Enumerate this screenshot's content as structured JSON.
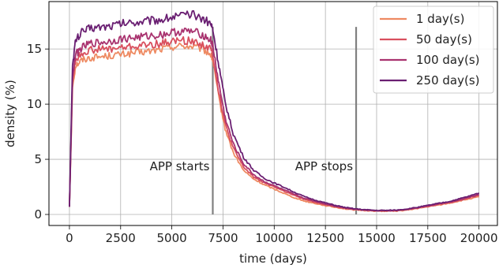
{
  "chart_data": {
    "type": "line",
    "xlabel": "time (days)",
    "ylabel": "density (%)",
    "xlim": [
      -1000,
      20900
    ],
    "ylim": [
      -1,
      19.3
    ],
    "xticks": [
      0,
      2500,
      5000,
      7500,
      10000,
      12500,
      15000,
      17500,
      20000
    ],
    "yticks": [
      0,
      5,
      10,
      15
    ],
    "grid": true,
    "legend_position": "top-right",
    "annotations": [
      {
        "text": "APP starts",
        "x": 7000
      },
      {
        "text": "APP stops",
        "x": 14000
      }
    ],
    "vlines": [
      {
        "x": 7000,
        "ymin": 0,
        "ymax": 17,
        "color": "#808080"
      },
      {
        "x": 14000,
        "ymin": 0,
        "ymax": 17,
        "color": "#808080"
      }
    ],
    "series": [
      {
        "name": "1 day(s)",
        "color": "#EE8A62",
        "x": [
          0,
          150,
          300,
          600,
          1000,
          1500,
          2000,
          2500,
          3000,
          3500,
          4000,
          4500,
          5000,
          5500,
          6000,
          6500,
          6900,
          7000,
          7300,
          7600,
          8000,
          8500,
          9000,
          9500,
          10000,
          10500,
          11000,
          11500,
          12000,
          12500,
          13000,
          13500,
          14000,
          14500,
          15000,
          15500,
          16000,
          16500,
          17000,
          17500,
          18000,
          18500,
          19000,
          19500,
          20000
        ],
        "y": [
          0.7,
          11.5,
          13.5,
          14.0,
          14.2,
          14.3,
          14.4,
          14.5,
          14.6,
          14.7,
          14.8,
          15.0,
          15.2,
          15.3,
          15.2,
          15.0,
          14.5,
          14.0,
          10.5,
          7.8,
          5.6,
          4.0,
          3.2,
          2.7,
          2.3,
          1.9,
          1.5,
          1.2,
          1.0,
          0.8,
          0.65,
          0.5,
          0.4,
          0.35,
          0.3,
          0.3,
          0.32,
          0.4,
          0.55,
          0.7,
          0.85,
          1.0,
          1.2,
          1.4,
          1.6
        ]
      },
      {
        "name": "50 day(s)",
        "color": "#D94F5E",
        "x": [
          0,
          150,
          300,
          600,
          1000,
          1500,
          2000,
          2500,
          3000,
          3500,
          4000,
          4500,
          5000,
          5500,
          6000,
          6500,
          6900,
          7000,
          7300,
          7600,
          8000,
          8500,
          9000,
          9500,
          10000,
          10500,
          11000,
          11500,
          12000,
          12500,
          13000,
          13500,
          14000,
          14500,
          15000,
          15500,
          16000,
          16500,
          17000,
          17500,
          18000,
          18500,
          19000,
          19500,
          20000
        ],
        "y": [
          0.7,
          12.0,
          14.0,
          14.6,
          14.9,
          15.0,
          15.0,
          15.1,
          15.2,
          15.3,
          15.4,
          15.5,
          15.7,
          15.8,
          15.7,
          15.4,
          15.0,
          14.5,
          11.0,
          8.2,
          6.0,
          4.3,
          3.4,
          2.9,
          2.5,
          2.1,
          1.7,
          1.35,
          1.1,
          0.9,
          0.7,
          0.55,
          0.45,
          0.38,
          0.33,
          0.33,
          0.35,
          0.45,
          0.6,
          0.75,
          0.9,
          1.05,
          1.25,
          1.5,
          1.75
        ]
      },
      {
        "name": "100 day(s)",
        "color": "#A9336F",
        "x": [
          0,
          150,
          300,
          600,
          1000,
          1500,
          2000,
          2500,
          3000,
          3500,
          4000,
          4500,
          5000,
          5500,
          6000,
          6500,
          6900,
          7000,
          7300,
          7600,
          8000,
          8500,
          9000,
          9500,
          10000,
          10500,
          11000,
          11500,
          12000,
          12500,
          13000,
          13500,
          14000,
          14500,
          15000,
          15500,
          16000,
          16500,
          17000,
          17500,
          18000,
          18500,
          19000,
          19500,
          20000
        ],
        "y": [
          0.7,
          12.5,
          14.5,
          15.1,
          15.5,
          15.6,
          15.7,
          15.9,
          16.0,
          16.1,
          16.2,
          16.3,
          16.5,
          16.6,
          16.6,
          16.3,
          15.8,
          15.3,
          11.8,
          8.8,
          6.4,
          4.6,
          3.6,
          3.0,
          2.6,
          2.2,
          1.8,
          1.45,
          1.2,
          0.95,
          0.75,
          0.58,
          0.47,
          0.4,
          0.35,
          0.35,
          0.37,
          0.47,
          0.62,
          0.78,
          0.95,
          1.1,
          1.3,
          1.55,
          1.8
        ]
      },
      {
        "name": "250 day(s)",
        "color": "#6A1F72",
        "x": [
          0,
          150,
          300,
          600,
          1000,
          1500,
          2000,
          2500,
          3000,
          3500,
          4000,
          4500,
          5000,
          5500,
          6000,
          6500,
          6900,
          7000,
          7300,
          7600,
          8000,
          8500,
          9000,
          9500,
          10000,
          10500,
          11000,
          11500,
          12000,
          12500,
          13000,
          13500,
          14000,
          14500,
          15000,
          15500,
          16000,
          16500,
          17000,
          17500,
          18000,
          18500,
          19000,
          19500,
          20000
        ],
        "y": [
          0.7,
          13.5,
          15.8,
          16.5,
          16.9,
          17.0,
          17.1,
          17.3,
          17.4,
          17.5,
          17.6,
          17.7,
          17.9,
          18.0,
          18.1,
          17.8,
          17.3,
          16.8,
          13.5,
          10.2,
          7.3,
          5.2,
          4.0,
          3.3,
          2.85,
          2.45,
          2.0,
          1.6,
          1.3,
          1.05,
          0.82,
          0.62,
          0.5,
          0.42,
          0.37,
          0.37,
          0.4,
          0.5,
          0.65,
          0.82,
          1.0,
          1.15,
          1.4,
          1.65,
          1.95
        ]
      }
    ]
  }
}
